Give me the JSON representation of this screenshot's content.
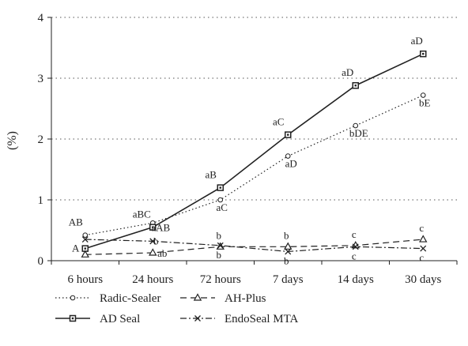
{
  "chart_data": {
    "type": "line",
    "title": "",
    "xlabel": "",
    "ylabel": "(%)",
    "categories": [
      "6 hours",
      "24 hours",
      "72 hours",
      "7 days",
      "14 days",
      "30 days"
    ],
    "ylim": [
      0,
      4
    ],
    "yticks": [
      "0",
      "1",
      "2",
      "3",
      "4"
    ],
    "grid": "horizontal-dotted",
    "legend_position": "bottom",
    "series": [
      {
        "name": "Radic-Sealer",
        "values": [
          0.42,
          0.62,
          1.0,
          1.72,
          2.22,
          2.72
        ],
        "style": "dotted",
        "marker": "circle",
        "color": "#222222",
        "point_labels": [
          "AB",
          "aAB",
          "aC",
          "aD",
          "bDE",
          "bE"
        ]
      },
      {
        "name": "AD Seal",
        "values": [
          0.2,
          0.55,
          1.2,
          2.07,
          2.88,
          3.4
        ],
        "style": "solid",
        "marker": "square",
        "color": "#222222",
        "point_labels": [
          "A",
          "aBC",
          "aB",
          "aC",
          "aD",
          "aD"
        ]
      },
      {
        "name": "AH-Plus",
        "values": [
          0.1,
          0.13,
          0.23,
          0.23,
          0.25,
          0.35
        ],
        "style": "dashed",
        "marker": "triangle",
        "color": "#222222",
        "point_labels": [
          "",
          "ab",
          "b",
          "b",
          "c",
          "c"
        ]
      },
      {
        "name": "EndoSeal MTA",
        "values": [
          0.35,
          0.32,
          0.25,
          0.15,
          0.23,
          0.2
        ],
        "style": "dashdot",
        "marker": "x",
        "color": "#222222",
        "point_labels": [
          "",
          "b",
          "b",
          "b",
          "c",
          "c"
        ]
      }
    ]
  }
}
